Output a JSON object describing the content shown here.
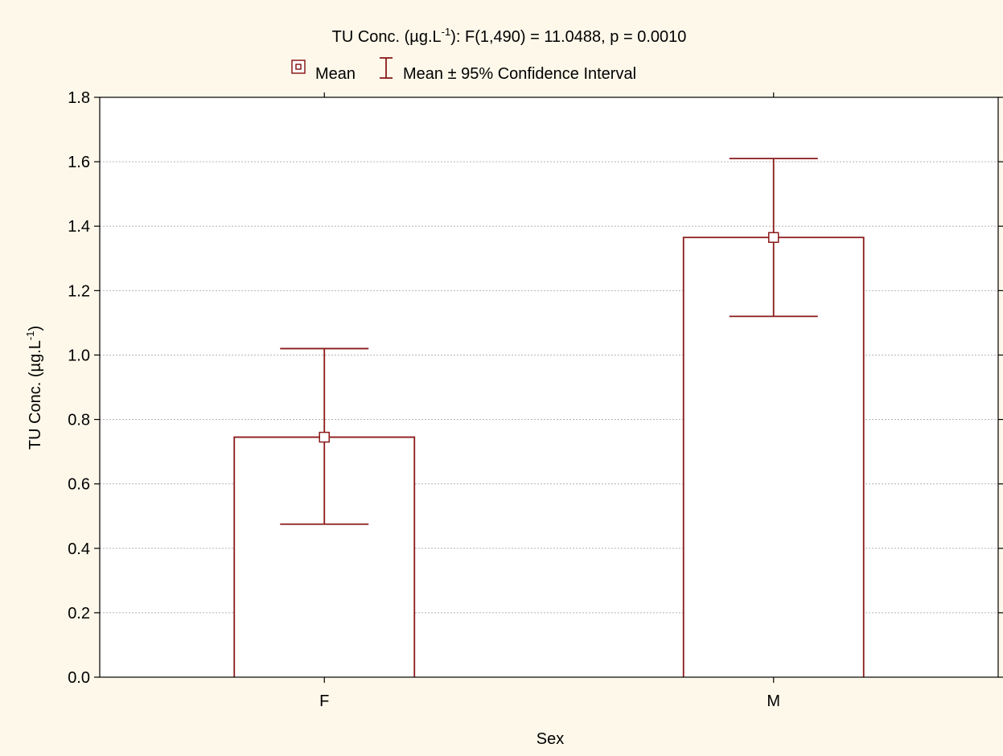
{
  "chart_data": {
    "type": "bar",
    "title": {
      "prefix": "TU Conc. (µg.L",
      "sup": "-1",
      "suffix": "):   F(1,490) = 11.0488, p = 0.0010"
    },
    "legend": {
      "placement": "top-center",
      "items": [
        {
          "marker": "mean-square-icon",
          "label": "Mean"
        },
        {
          "marker": "error-bar-icon",
          "label": "Mean ± 95% Confidence Interval"
        }
      ]
    },
    "xlabel": "Sex",
    "ylabel": {
      "prefix": "TU Conc. (µg.L",
      "sup": "-1",
      "suffix": ")"
    },
    "categories": [
      "F",
      "M"
    ],
    "series": [
      {
        "values": [
          0.745,
          1.365
        ],
        "ci_low": [
          0.475,
          1.12
        ],
        "ci_high": [
          1.02,
          1.61
        ]
      }
    ],
    "ylim": [
      0.0,
      1.8
    ],
    "yticks": [
      "0.0",
      "0.2",
      "0.4",
      "0.6",
      "0.8",
      "1.0",
      "1.2",
      "1.4",
      "1.6",
      "1.8"
    ],
    "grid": true,
    "colors": {
      "accent": "#8b1a1a",
      "background": "#fdf8ea",
      "plot": "#ffffff",
      "grid": "#b4b4b4"
    }
  }
}
